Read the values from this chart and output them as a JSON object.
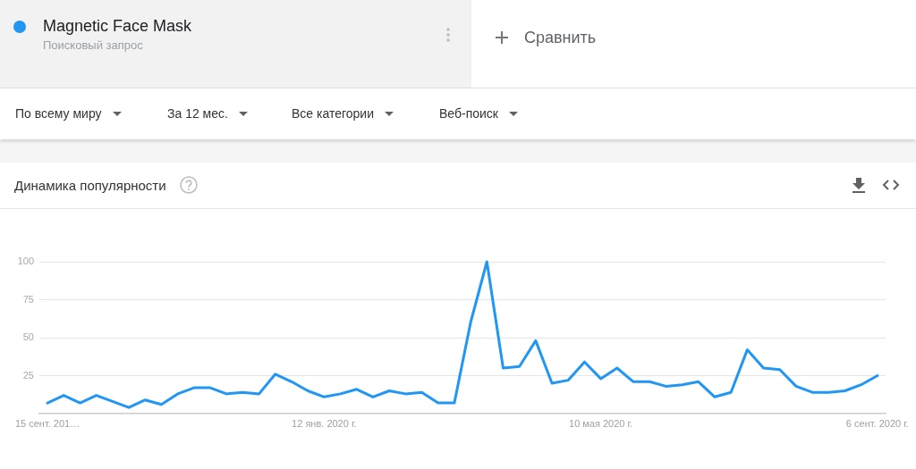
{
  "chart_data": {
    "type": "line",
    "title": "Динамика популярности",
    "categories": [
      "15 сент. 201…",
      null,
      null,
      null,
      null,
      null,
      null,
      null,
      null,
      null,
      null,
      null,
      null,
      null,
      null,
      null,
      null,
      "12 янв. 2020 г.",
      null,
      null,
      null,
      null,
      null,
      null,
      null,
      null,
      null,
      null,
      null,
      null,
      null,
      null,
      null,
      null,
      "10 мая 2020 г.",
      null,
      null,
      null,
      null,
      null,
      null,
      null,
      null,
      null,
      null,
      null,
      null,
      null,
      null,
      null,
      null,
      "6 сент. 2020 г."
    ],
    "series": [
      {
        "name": "Magnetic Face Mask",
        "color": "#2196f3",
        "values": [
          7,
          12,
          7,
          12,
          8,
          4,
          9,
          6,
          13,
          17,
          17,
          13,
          14,
          13,
          26,
          21,
          15,
          11,
          13,
          16,
          11,
          15,
          13,
          14,
          7,
          7,
          60,
          100,
          30,
          31,
          48,
          20,
          22,
          34,
          23,
          30,
          21,
          21,
          18,
          19,
          21,
          11,
          14,
          42,
          30,
          29,
          18,
          14,
          14,
          15,
          19,
          25
        ]
      }
    ],
    "ylim": [
      0,
      100
    ],
    "yticks": [
      25,
      50,
      75,
      100
    ],
    "grid": "y",
    "legend": "top left",
    "annotations": [
      "Поисковый запрос",
      "Сравнить",
      "По всему миру",
      "За 12 мес.",
      "Все категории",
      "Веб-поиск"
    ]
  }
}
